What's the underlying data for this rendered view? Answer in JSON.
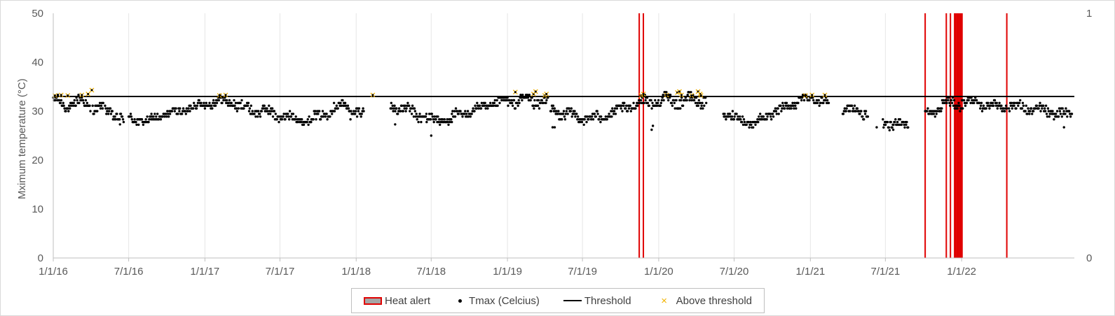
{
  "chart_data": {
    "type": "scatter",
    "title": "",
    "ylabel": "Mximum temperature (°C)",
    "xlabel": "",
    "ylim": [
      0,
      50
    ],
    "y_ticks": [
      "0",
      "10",
      "20",
      "30",
      "40",
      "50"
    ],
    "y2lim": [
      0,
      1
    ],
    "y2_ticks": [
      "0",
      "1"
    ],
    "x_range": [
      "2016-01-01",
      "2022-09-30"
    ],
    "x_ticks": [
      {
        "label": "1/1/16",
        "date": "2016-01-01"
      },
      {
        "label": "7/1/16",
        "date": "2016-07-01"
      },
      {
        "label": "1/1/17",
        "date": "2017-01-01"
      },
      {
        "label": "7/1/17",
        "date": "2017-07-01"
      },
      {
        "label": "1/1/18",
        "date": "2018-01-01"
      },
      {
        "label": "7/1/18",
        "date": "2018-07-01"
      },
      {
        "label": "1/1/19",
        "date": "2019-01-01"
      },
      {
        "label": "7/1/19",
        "date": "2019-07-01"
      },
      {
        "label": "1/1/20",
        "date": "2020-01-01"
      },
      {
        "label": "7/1/20",
        "date": "2020-07-01"
      },
      {
        "label": "1/1/21",
        "date": "2021-01-01"
      },
      {
        "label": "7/1/21",
        "date": "2021-07-01"
      },
      {
        "label": "1/1/22",
        "date": "2022-01-01"
      }
    ],
    "grid": "vertical",
    "legend_position": "bottom",
    "threshold": 33,
    "colors": {
      "heat_alert": "#e00000",
      "tmax": "#000000",
      "threshold": "#000000",
      "above": "#f2b300",
      "grid": "#e6e6e6"
    },
    "series": [
      {
        "name": "Heat alert",
        "kind": "vertical-bars",
        "dates": [
          "2019-11-15",
          "2019-11-25",
          "2021-10-05",
          "2021-11-25",
          "2021-12-05",
          "2021-12-15",
          "2021-12-18",
          "2021-12-21",
          "2021-12-24",
          "2021-12-27",
          "2021-12-30",
          "2022-01-02",
          "2022-04-20"
        ]
      },
      {
        "name": "Tmax (Celcius)",
        "kind": "points",
        "segments": [
          {
            "from": "2016-01-01",
            "to": "2016-04-01",
            "a": 31.5,
            "b": 31.5,
            "amp": 1.0,
            "jit": 0.9
          },
          {
            "from": "2016-04-05",
            "to": "2016-05-01",
            "a": 30.8,
            "b": 30.5,
            "amp": 0.5,
            "jit": 0.8
          },
          {
            "from": "2016-05-05",
            "to": "2016-06-20",
            "a": 30.2,
            "b": 28.3,
            "amp": 0.6,
            "jit": 0.9
          },
          {
            "from": "2016-07-01",
            "to": "2016-08-25",
            "a": 28.5,
            "b": 27.8,
            "amp": 0.4,
            "jit": 0.7
          },
          {
            "from": "2016-08-25",
            "to": "2016-12-31",
            "a": 28.5,
            "b": 31.5,
            "amp": 0.4,
            "jit": 0.7
          },
          {
            "from": "2017-01-01",
            "to": "2017-03-15",
            "a": 31.8,
            "b": 32.0,
            "amp": 0.6,
            "jit": 0.8
          },
          {
            "from": "2017-03-15",
            "to": "2017-06-30",
            "a": 31.0,
            "b": 29.3,
            "amp": 0.6,
            "jit": 1.0
          },
          {
            "from": "2017-07-01",
            "to": "2017-09-15",
            "a": 29.0,
            "b": 28.0,
            "amp": 0.5,
            "jit": 0.7
          },
          {
            "from": "2017-09-15",
            "to": "2017-12-15",
            "a": 28.5,
            "b": 31.8,
            "amp": 0.5,
            "jit": 0.9
          },
          {
            "from": "2017-12-15",
            "to": "2018-01-20",
            "a": 30.0,
            "b": 29.0,
            "amp": 0.8,
            "jit": 1.0
          },
          {
            "from": "2018-03-25",
            "to": "2018-06-20",
            "a": 31.2,
            "b": 28.8,
            "amp": 0.6,
            "jit": 1.0
          },
          {
            "from": "2018-06-20",
            "to": "2018-08-20",
            "a": 28.3,
            "b": 28.3,
            "amp": 0.5,
            "jit": 0.8
          },
          {
            "from": "2018-08-20",
            "to": "2019-01-01",
            "a": 28.8,
            "b": 32.2,
            "amp": 0.5,
            "jit": 0.8
          },
          {
            "from": "2019-01-01",
            "to": "2019-04-10",
            "a": 32.2,
            "b": 32.0,
            "amp": 0.8,
            "jit": 0.9
          },
          {
            "from": "2019-04-15",
            "to": "2019-06-01",
            "a": 30.0,
            "b": 29.5,
            "amp": 0.8,
            "jit": 0.9
          },
          {
            "from": "2019-06-01",
            "to": "2019-08-15",
            "a": 29.0,
            "b": 28.5,
            "amp": 0.6,
            "jit": 0.8
          },
          {
            "from": "2019-08-15",
            "to": "2019-12-01",
            "a": 28.8,
            "b": 32.2,
            "amp": 0.5,
            "jit": 0.8
          },
          {
            "from": "2019-12-01",
            "to": "2020-04-25",
            "a": 32.0,
            "b": 32.3,
            "amp": 0.8,
            "jit": 1.0
          },
          {
            "from": "2020-06-05",
            "to": "2020-08-20",
            "a": 29.5,
            "b": 27.3,
            "amp": 0.5,
            "jit": 0.7
          },
          {
            "from": "2020-08-20",
            "to": "2020-11-30",
            "a": 27.8,
            "b": 31.8,
            "amp": 0.4,
            "jit": 0.8
          },
          {
            "from": "2020-12-01",
            "to": "2021-02-15",
            "a": 32.5,
            "b": 32.2,
            "amp": 0.4,
            "jit": 0.7
          },
          {
            "from": "2021-03-20",
            "to": "2021-05-20",
            "a": 30.5,
            "b": 29.5,
            "amp": 0.6,
            "jit": 0.8
          },
          {
            "from": "2021-06-25",
            "to": "2021-08-25",
            "a": 27.5,
            "b": 27.3,
            "amp": 0.6,
            "jit": 0.8
          },
          {
            "from": "2021-10-05",
            "to": "2021-11-15",
            "a": 29.5,
            "b": 30.5,
            "amp": 0.5,
            "jit": 0.7
          },
          {
            "from": "2021-11-15",
            "to": "2022-02-10",
            "a": 31.5,
            "b": 31.8,
            "amp": 0.6,
            "jit": 0.9
          },
          {
            "from": "2022-02-10",
            "to": "2022-04-20",
            "a": 31.3,
            "b": 31.0,
            "amp": 0.5,
            "jit": 0.8
          },
          {
            "from": "2022-04-25",
            "to": "2022-09-25",
            "a": 31.2,
            "b": 29.0,
            "amp": 0.6,
            "jit": 0.9
          }
        ],
        "outliers": [
          {
            "date": "2016-06-10",
            "y": 27.3
          },
          {
            "date": "2018-07-01",
            "y": 25.0
          },
          {
            "date": "2019-12-15",
            "y": 26.2
          },
          {
            "date": "2019-12-18",
            "y": 27.0
          },
          {
            "date": "2021-07-20",
            "y": 26.2
          },
          {
            "date": "2021-06-10",
            "y": 26.7
          },
          {
            "date": "2022-09-05",
            "y": 26.7
          },
          {
            "date": "2019-04-20",
            "y": 26.7
          },
          {
            "date": "2019-04-25",
            "y": 26.7
          },
          {
            "date": "2018-04-05",
            "y": 27.3
          }
        ]
      },
      {
        "name": "Threshold",
        "kind": "line",
        "y": 33
      },
      {
        "name": "Above threshold",
        "kind": "markers",
        "points": [
          {
            "date": "2016-01-05",
            "y": 33.2
          },
          {
            "date": "2016-01-20",
            "y": 33.3
          },
          {
            "date": "2016-02-05",
            "y": 33.2
          },
          {
            "date": "2016-03-10",
            "y": 33.3
          },
          {
            "date": "2016-03-25",
            "y": 33.5
          },
          {
            "date": "2016-04-03",
            "y": 34.3
          },
          {
            "date": "2017-02-05",
            "y": 33.2
          },
          {
            "date": "2017-02-20",
            "y": 33.3
          },
          {
            "date": "2018-02-10",
            "y": 33.3
          },
          {
            "date": "2019-01-20",
            "y": 33.9
          },
          {
            "date": "2019-03-05",
            "y": 33.5
          },
          {
            "date": "2019-03-10",
            "y": 34.0
          },
          {
            "date": "2019-04-01",
            "y": 33.2
          },
          {
            "date": "2019-04-05",
            "y": 33.5
          },
          {
            "date": "2019-11-20",
            "y": 33.2
          },
          {
            "date": "2019-11-25",
            "y": 33.5
          },
          {
            "date": "2020-01-20",
            "y": 33.3
          },
          {
            "date": "2020-02-15",
            "y": 33.8
          },
          {
            "date": "2020-02-20",
            "y": 34.0
          },
          {
            "date": "2020-02-25",
            "y": 33.3
          },
          {
            "date": "2020-03-20",
            "y": 33.2
          },
          {
            "date": "2020-04-05",
            "y": 34.0
          },
          {
            "date": "2020-04-10",
            "y": 33.5
          },
          {
            "date": "2020-04-12",
            "y": 33.2
          },
          {
            "date": "2020-12-20",
            "y": 33.2
          },
          {
            "date": "2021-01-05",
            "y": 33.3
          },
          {
            "date": "2021-02-05",
            "y": 33.3
          }
        ]
      }
    ]
  }
}
